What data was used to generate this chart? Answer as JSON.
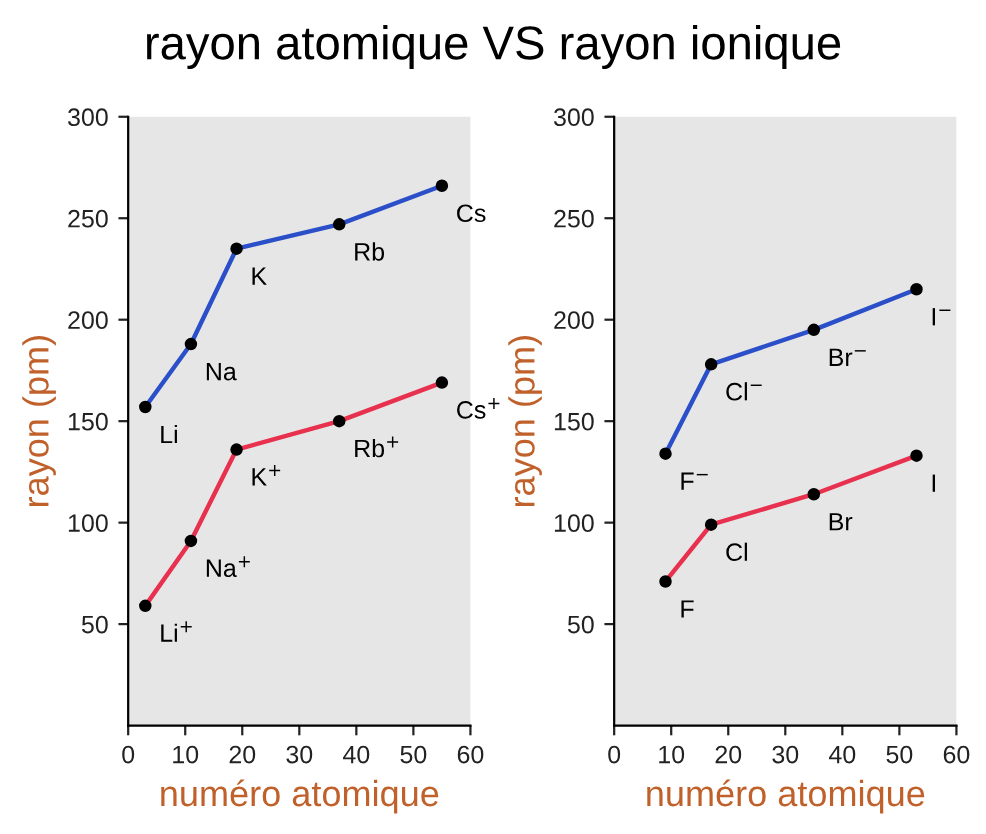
{
  "chart_data": [
    {
      "type": "line",
      "title": "rayon atomique VS rayon ionique",
      "xlabel": "numéro atomique",
      "ylabel": "rayon (pm)",
      "marker": "circle",
      "grid": false,
      "xlim": [
        0,
        60
      ],
      "xticks": [
        0,
        10,
        20,
        30,
        40,
        50,
        60
      ],
      "ylim": [
        0,
        300
      ],
      "yticks": [
        50,
        100,
        150,
        200,
        250,
        300
      ],
      "series": [
        {
          "color": "#2a4fc8",
          "x": [
            3,
            11,
            19,
            37,
            55
          ],
          "values": [
            157,
            188,
            235,
            247,
            266
          ]
        },
        {
          "color": "#e8304f",
          "x": [
            3,
            11,
            19,
            37,
            55
          ],
          "values": [
            59,
            91,
            136,
            150,
            169
          ]
        }
      ],
      "annotations": [
        {
          "text": "Li",
          "x": 3,
          "y": 157
        },
        {
          "text": "Na",
          "x": 11,
          "y": 188
        },
        {
          "text": "K",
          "x": 19,
          "y": 235
        },
        {
          "text": "Rb",
          "x": 37,
          "y": 247
        },
        {
          "text": "Cs",
          "x": 55,
          "y": 266
        },
        {
          "text": "Li$^{+}$",
          "x": 3,
          "y": 59
        },
        {
          "text": "Na$^{+}$",
          "x": 11,
          "y": 91
        },
        {
          "text": "K$^{+}$",
          "x": 19,
          "y": 136
        },
        {
          "text": "Rb$^{+}$",
          "x": 37,
          "y": 150
        },
        {
          "text": "Cs$^{+}$",
          "x": 55,
          "y": 169
        }
      ]
    },
    {
      "type": "line",
      "xlabel": "numéro atomique",
      "ylabel": "rayon (pm)",
      "marker": "circle",
      "grid": false,
      "xlim": [
        0,
        60
      ],
      "xticks": [
        0,
        10,
        20,
        30,
        40,
        50,
        60
      ],
      "ylim": [
        0,
        300
      ],
      "yticks": [
        50,
        100,
        150,
        200,
        250,
        300
      ],
      "series": [
        {
          "color": "#2a4fc8",
          "x": [
            9,
            17,
            35,
            53
          ],
          "values": [
            134,
            178,
            195,
            215
          ]
        },
        {
          "color": "#e8304f",
          "x": [
            9,
            17,
            35,
            53
          ],
          "values": [
            71,
            99,
            114,
            133
          ]
        }
      ],
      "annotations": [
        {
          "text": "F$^{−}$",
          "x": 9,
          "y": 134
        },
        {
          "text": "Cl$^{−}$",
          "x": 17,
          "y": 178
        },
        {
          "text": "Br$^{−}$",
          "x": 35,
          "y": 195
        },
        {
          "text": "I$^{−}$",
          "x": 53,
          "y": 215
        },
        {
          "text": "F",
          "x": 9,
          "y": 71
        },
        {
          "text": "Cl",
          "x": 17,
          "y": 99
        },
        {
          "text": "Br",
          "x": 35,
          "y": 114
        },
        {
          "text": "I",
          "x": 53,
          "y": 133
        }
      ]
    }
  ]
}
